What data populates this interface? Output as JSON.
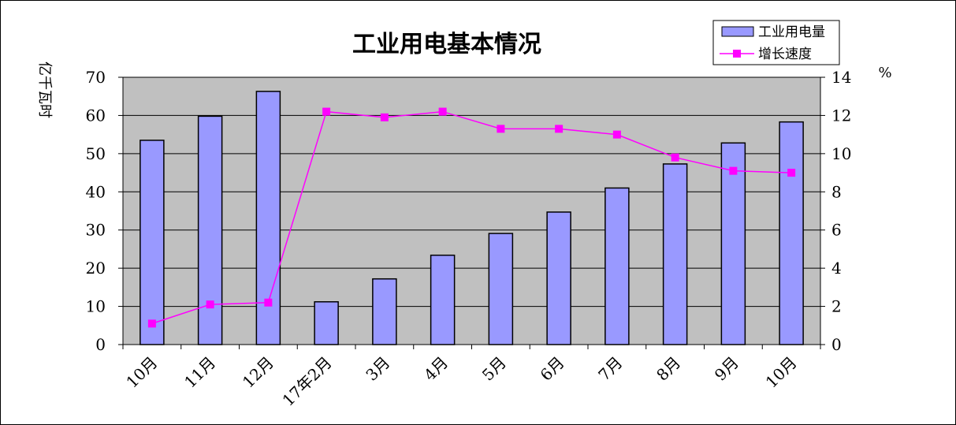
{
  "chart_data": {
    "type": "bar",
    "title": "工业用电基本情况",
    "categories": [
      "10月",
      "11月",
      "12月",
      "17年2月",
      "3月",
      "4月",
      "5月",
      "6月",
      "7月",
      "8月",
      "9月",
      "10月"
    ],
    "series": [
      {
        "name": "工业用电量",
        "type": "bar",
        "axis": "left",
        "values": [
          53.5,
          59.8,
          66.3,
          11.2,
          17.2,
          23.4,
          29.1,
          34.7,
          41.0,
          47.3,
          52.8,
          58.3
        ]
      },
      {
        "name": "增长速度",
        "type": "line",
        "axis": "right",
        "values": [
          1.1,
          2.1,
          2.2,
          12.2,
          11.9,
          12.2,
          11.3,
          11.3,
          11.0,
          9.8,
          9.1,
          9.0
        ]
      }
    ],
    "ylabel": "亿千瓦时",
    "y2label": "%",
    "ylim": [
      0,
      70
    ],
    "y2lim": [
      0,
      14
    ],
    "yticks": [
      "0",
      "10",
      "20",
      "30",
      "40",
      "50",
      "60",
      "70"
    ],
    "y2ticks": [
      "0",
      "2",
      "4",
      "6",
      "8",
      "10",
      "12",
      "14"
    ],
    "grid": true,
    "legend": "top-right",
    "colors": {
      "bar_fill": "#9999ff",
      "bar_stroke": "#000000",
      "line": "#ff00ff",
      "plot_background": "#c0c0c0",
      "gridline": "#000000"
    }
  }
}
